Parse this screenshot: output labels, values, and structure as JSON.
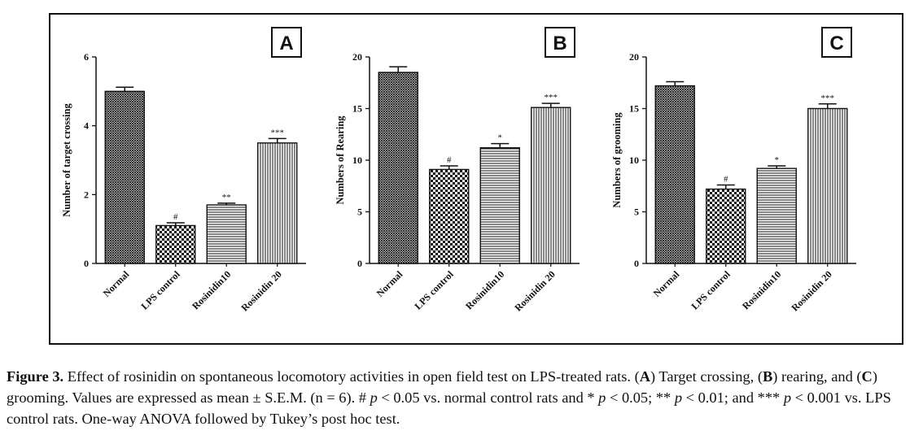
{
  "chart_data": [
    {
      "type": "bar",
      "panel_label": "A",
      "ylabel": "Number of target crossing",
      "ylim": [
        0,
        6
      ],
      "yticks": [
        0,
        2,
        4,
        6
      ],
      "categories": [
        "Normal",
        "LPS control",
        "Rosinidin10",
        "Rosinidin 20"
      ],
      "values": [
        5.0,
        1.1,
        1.7,
        3.5
      ],
      "errors": [
        0.12,
        0.08,
        0.05,
        0.13
      ],
      "annotations": [
        "",
        "#",
        "**",
        "***"
      ],
      "patterns": [
        "hatch-fine",
        "checker",
        "horizontal",
        "vertical"
      ]
    },
    {
      "type": "bar",
      "panel_label": "B",
      "ylabel": "Numbers of Rearing",
      "ylim": [
        0,
        20
      ],
      "yticks": [
        0,
        5,
        10,
        15,
        20
      ],
      "categories": [
        "Normal",
        "LPS control",
        "Rosinidin10",
        "Rosinidin 20"
      ],
      "values": [
        18.5,
        9.1,
        11.2,
        15.1
      ],
      "errors": [
        0.55,
        0.35,
        0.4,
        0.4
      ],
      "annotations": [
        "",
        "#",
        "*",
        "***"
      ],
      "patterns": [
        "hatch-fine",
        "checker",
        "horizontal",
        "vertical"
      ]
    },
    {
      "type": "bar",
      "panel_label": "C",
      "ylabel": "Numbers of grooming",
      "ylim": [
        0,
        20
      ],
      "yticks": [
        0,
        5,
        10,
        15,
        20
      ],
      "categories": [
        "Normal",
        "LPS control",
        "Rosinidin10",
        "Rosinidin 20"
      ],
      "values": [
        17.2,
        7.2,
        9.2,
        15.0
      ],
      "errors": [
        0.4,
        0.4,
        0.25,
        0.45
      ],
      "annotations": [
        "",
        "#",
        "*",
        "***"
      ],
      "patterns": [
        "hatch-fine",
        "checker",
        "horizontal",
        "vertical"
      ]
    }
  ],
  "caption": {
    "title": "Figure 3.",
    "text_1": " Effect of rosinidin on spontaneous locomotory activities in open field test on LPS-treated rats. (",
    "label_a": "A",
    "text_2": ") Target crossing, (",
    "label_b": "B",
    "text_3": ") rearing, and (",
    "label_c": "C",
    "text_4": ") grooming. Values are expressed as mean ± S.E.M. (n = 6). # ",
    "p1": "p",
    "text_5": " < 0.05 vs. normal control rats and * ",
    "p2": "p",
    "text_6": " < 0.05; ** ",
    "p3": "p",
    "text_7": " < 0.01; and *** ",
    "p4": "p",
    "text_8": " < 0.001 vs. LPS control rats. One-way ANOVA followed by Tukey’s post hoc test."
  },
  "colors": {
    "ink": "#111111",
    "background": "#ffffff"
  }
}
